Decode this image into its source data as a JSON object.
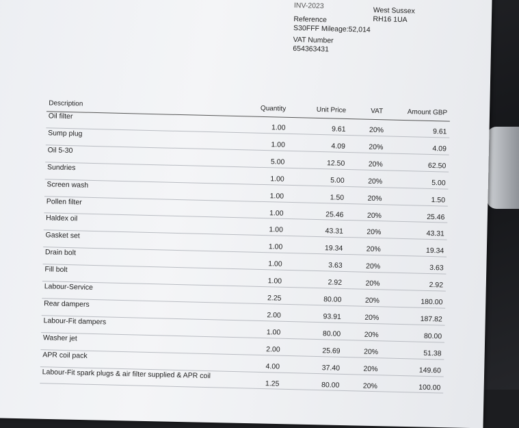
{
  "header": {
    "invoice": "INV-2023",
    "reference_label": "Reference",
    "reference": "S30FFF Mileage:52,014",
    "vat_label": "VAT Number",
    "vat_number": "654363431",
    "address": [
      "West Sussex",
      "RH16 1UA"
    ]
  },
  "table": {
    "columns": [
      "Description",
      "Quantity",
      "Unit Price",
      "VAT",
      "Amount GBP"
    ],
    "rows": [
      [
        "Oil filter",
        "1.00",
        "9.61",
        "20%",
        "9.61"
      ],
      [
        "Sump plug",
        "1.00",
        "4.09",
        "20%",
        "4.09"
      ],
      [
        "Oil 5-30",
        "5.00",
        "12.50",
        "20%",
        "62.50"
      ],
      [
        "Sundries",
        "1.00",
        "5.00",
        "20%",
        "5.00"
      ],
      [
        "Screen wash",
        "1.00",
        "1.50",
        "20%",
        "1.50"
      ],
      [
        "Pollen filter",
        "1.00",
        "25.46",
        "20%",
        "25.46"
      ],
      [
        "Haldex oil",
        "1.00",
        "43.31",
        "20%",
        "43.31"
      ],
      [
        "Gasket set",
        "1.00",
        "19.34",
        "20%",
        "19.34"
      ],
      [
        "Drain bolt",
        "1.00",
        "3.63",
        "20%",
        "3.63"
      ],
      [
        "Fill bolt",
        "1.00",
        "2.92",
        "20%",
        "2.92"
      ],
      [
        "Labour-Service",
        "2.25",
        "80.00",
        "20%",
        "180.00"
      ],
      [
        "Rear dampers",
        "2.00",
        "93.91",
        "20%",
        "187.82"
      ],
      [
        "Labour-Fit dampers",
        "1.00",
        "80.00",
        "20%",
        "80.00"
      ],
      [
        "Washer jet",
        "2.00",
        "25.69",
        "20%",
        "51.38"
      ],
      [
        "APR coil pack",
        "4.00",
        "37.40",
        "20%",
        "149.60"
      ],
      [
        "Labour-Fit spark plugs & air filter supplied & APR coil",
        "1.25",
        "80.00",
        "20%",
        "100.00"
      ]
    ]
  }
}
